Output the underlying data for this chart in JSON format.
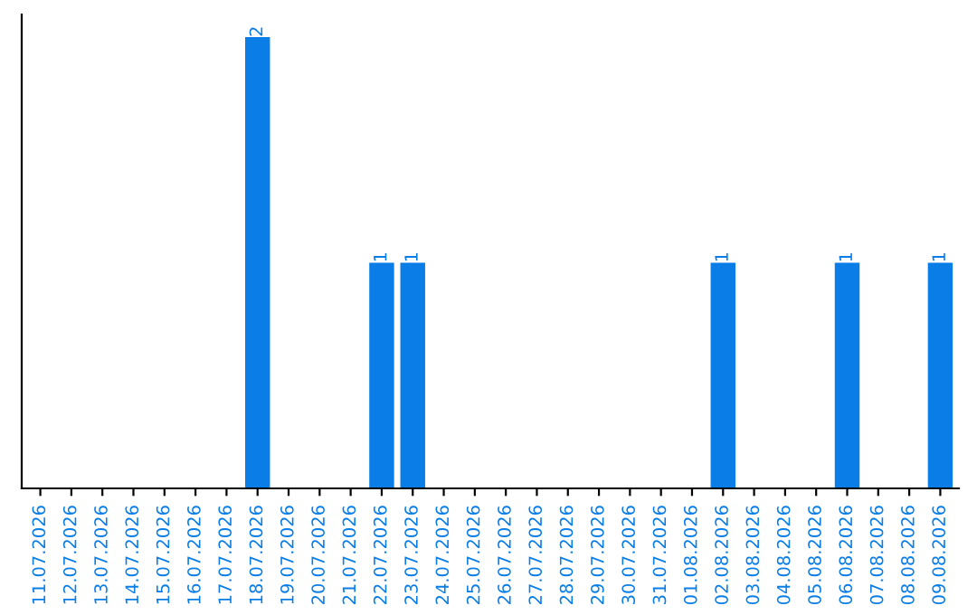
{
  "chart_data": {
    "type": "bar",
    "categories": [
      "11.07.2026",
      "12.07.2026",
      "13.07.2026",
      "14.07.2026",
      "15.07.2026",
      "16.07.2026",
      "17.07.2026",
      "18.07.2026",
      "19.07.2026",
      "20.07.2026",
      "21.07.2026",
      "22.07.2026",
      "23.07.2026",
      "24.07.2026",
      "25.07.2026",
      "26.07.2026",
      "27.07.2026",
      "28.07.2026",
      "29.07.2026",
      "30.07.2026",
      "31.07.2026",
      "01.08.2026",
      "02.08.2026",
      "03.08.2026",
      "04.08.2026",
      "05.08.2026",
      "06.08.2026",
      "07.08.2026",
      "08.08.2026",
      "09.08.2026"
    ],
    "values": [
      0,
      0,
      0,
      0,
      0,
      0,
      0,
      2,
      0,
      0,
      0,
      1,
      1,
      0,
      0,
      0,
      0,
      0,
      0,
      0,
      0,
      0,
      1,
      0,
      0,
      0,
      1,
      0,
      0,
      1
    ],
    "value_labels": [
      null,
      null,
      null,
      null,
      null,
      null,
      null,
      "2",
      null,
      null,
      null,
      "1",
      "1",
      null,
      null,
      null,
      null,
      null,
      null,
      null,
      null,
      null,
      "1",
      null,
      null,
      null,
      "1",
      null,
      null,
      "1"
    ],
    "color": "#0a7ee6",
    "tick_labels": "x",
    "grid": false,
    "legend": false
  }
}
